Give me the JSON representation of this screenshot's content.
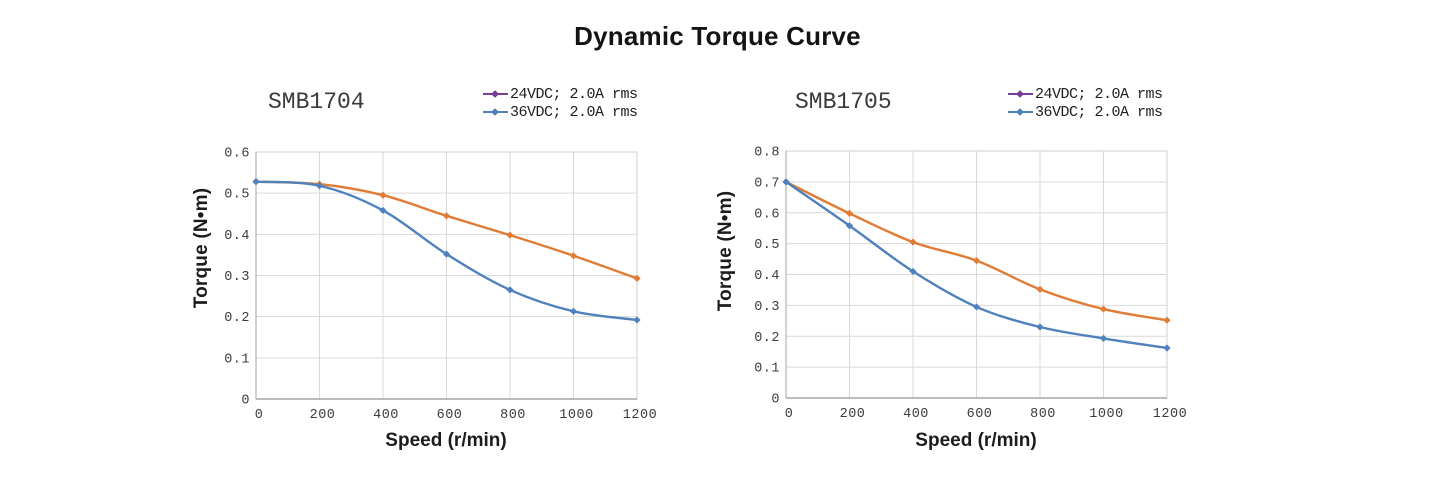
{
  "page": {
    "title": "Dynamic Torque Curve"
  },
  "colors": {
    "grid": "#d9d9d9",
    "border": "#d2d2d2",
    "axis": "#a6a6a6",
    "tick_text": "#3d3d3d"
  },
  "chart_data": [
    {
      "type": "line",
      "title": "SMB1704",
      "xlabel": "Speed (r/min)",
      "ylabel": "Torque (N•m)",
      "xlim": [
        0,
        1200
      ],
      "ylim": [
        0,
        0.6
      ],
      "xticks": [
        "0",
        "200",
        "400",
        "600",
        "800",
        "1000",
        "1200"
      ],
      "yticks": [
        "0",
        "0.1",
        "0.2",
        "0.3",
        "0.4",
        "0.5",
        "0.6"
      ],
      "grid": true,
      "legend_position": "top-right",
      "x": [
        0,
        200,
        400,
        600,
        800,
        1000,
        1200
      ],
      "legend": [
        {
          "label": "24VDC; 2.0A rms",
          "glyph_color": "#7b3e98"
        },
        {
          "label": "36VDC; 2.0A rms",
          "glyph_color": "#4f81bd"
        }
      ],
      "series": [
        {
          "name": "24VDC; 2.0A rms",
          "color": "#e07c35",
          "values": [
            0.528,
            0.522,
            0.495,
            0.445,
            0.398,
            0.348,
            0.293
          ]
        },
        {
          "name": "36VDC; 2.0A rms",
          "color": "#4f81bd",
          "values": [
            0.528,
            0.518,
            0.458,
            0.352,
            0.265,
            0.213,
            0.192
          ]
        }
      ]
    },
    {
      "type": "line",
      "title": "SMB1705",
      "xlabel": "Speed (r/min)",
      "ylabel": "Torque (N•m)",
      "xlim": [
        0,
        1200
      ],
      "ylim": [
        0,
        0.8
      ],
      "xticks": [
        "0",
        "200",
        "400",
        "600",
        "800",
        "1000",
        "1200"
      ],
      "yticks": [
        "0",
        "0.1",
        "0.2",
        "0.3",
        "0.4",
        "0.5",
        "0.6",
        "0.7",
        "0.8"
      ],
      "grid": true,
      "legend_position": "top-right",
      "x": [
        0,
        200,
        400,
        600,
        800,
        1000,
        1200
      ],
      "legend": [
        {
          "label": "24VDC; 2.0A rms",
          "glyph_color": "#7b3e98"
        },
        {
          "label": "36VDC; 2.0A rms",
          "glyph_color": "#4f81bd"
        }
      ],
      "series": [
        {
          "name": "24VDC; 2.0A rms",
          "color": "#e07c35",
          "values": [
            0.7,
            0.598,
            0.505,
            0.445,
            0.352,
            0.288,
            0.252
          ]
        },
        {
          "name": "36VDC; 2.0A rms",
          "color": "#4f81bd",
          "values": [
            0.7,
            0.558,
            0.41,
            0.295,
            0.23,
            0.193,
            0.162
          ]
        }
      ]
    }
  ]
}
